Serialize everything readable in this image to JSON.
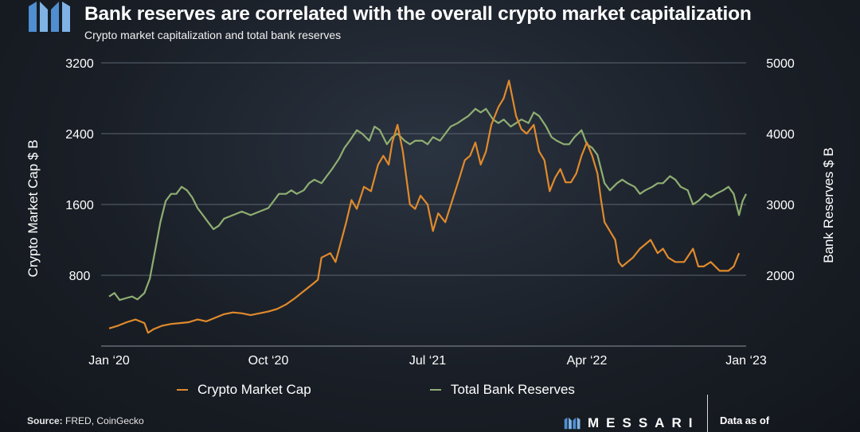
{
  "header": {
    "title": "Bank reserves are correlated with the overall crypto market capitalization",
    "subtitle": "Crypto market capitalization and total bank reserves"
  },
  "footer": {
    "source_label": "Source:",
    "source_value": "FRED, CoinGecko",
    "brand": "MESSARI",
    "data_as_of": "Data as of"
  },
  "colors": {
    "crypto": "#e08a2c",
    "reserves": "#8fae72",
    "accent": "#5b9bd5"
  },
  "chart_data": {
    "type": "line",
    "left_axis": {
      "label": "Crypto Market Cap $ B",
      "ticks": [
        800,
        1600,
        2400,
        3200
      ],
      "range": [
        0,
        3200
      ]
    },
    "right_axis": {
      "label": "Bank Reserves $ B",
      "ticks": [
        2000,
        3000,
        4000,
        5000
      ],
      "range": [
        1000,
        5000
      ]
    },
    "x_axis": {
      "ticks": [
        {
          "label": "Jan ‘20",
          "t": 0
        },
        {
          "label": "Oct ‘20",
          "t": 9
        },
        {
          "label": "Jul ‘21",
          "t": 18
        },
        {
          "label": "Apr ‘22",
          "t": 27
        },
        {
          "label": "Jan ‘23",
          "t": 36
        }
      ]
    },
    "legend": [
      "Crypto Market Cap",
      "Total Bank Reserves"
    ],
    "series": [
      {
        "name": "Crypto Market Cap",
        "axis": "left",
        "points": [
          [
            0,
            200
          ],
          [
            0.5,
            230
          ],
          [
            1,
            270
          ],
          [
            1.5,
            300
          ],
          [
            2,
            260
          ],
          [
            2.2,
            150
          ],
          [
            2.5,
            190
          ],
          [
            3,
            230
          ],
          [
            3.5,
            250
          ],
          [
            4,
            260
          ],
          [
            4.5,
            270
          ],
          [
            5,
            300
          ],
          [
            5.5,
            280
          ],
          [
            6,
            320
          ],
          [
            6.5,
            360
          ],
          [
            7,
            380
          ],
          [
            7.5,
            370
          ],
          [
            8,
            350
          ],
          [
            8.5,
            370
          ],
          [
            9,
            390
          ],
          [
            9.5,
            420
          ],
          [
            10,
            470
          ],
          [
            10.5,
            540
          ],
          [
            11,
            620
          ],
          [
            11.5,
            700
          ],
          [
            11.8,
            750
          ],
          [
            12,
            1000
          ],
          [
            12.5,
            1050
          ],
          [
            12.8,
            950
          ],
          [
            13,
            1100
          ],
          [
            13.4,
            1400
          ],
          [
            13.7,
            1650
          ],
          [
            14,
            1550
          ],
          [
            14.4,
            1800
          ],
          [
            14.8,
            1750
          ],
          [
            15.2,
            2050
          ],
          [
            15.5,
            2150
          ],
          [
            15.8,
            2050
          ],
          [
            16,
            2300
          ],
          [
            16.3,
            2500
          ],
          [
            16.6,
            2200
          ],
          [
            17,
            1600
          ],
          [
            17.3,
            1550
          ],
          [
            17.6,
            1700
          ],
          [
            18,
            1600
          ],
          [
            18.3,
            1300
          ],
          [
            18.6,
            1500
          ],
          [
            19,
            1400
          ],
          [
            19.4,
            1650
          ],
          [
            19.8,
            1900
          ],
          [
            20.1,
            2100
          ],
          [
            20.4,
            2150
          ],
          [
            20.7,
            2300
          ],
          [
            21,
            2050
          ],
          [
            21.3,
            2200
          ],
          [
            21.6,
            2500
          ],
          [
            22,
            2700
          ],
          [
            22.3,
            2800
          ],
          [
            22.6,
            3000
          ],
          [
            23,
            2600
          ],
          [
            23.3,
            2450
          ],
          [
            23.6,
            2400
          ],
          [
            24,
            2500
          ],
          [
            24.3,
            2200
          ],
          [
            24.6,
            2100
          ],
          [
            24.9,
            1750
          ],
          [
            25.2,
            1900
          ],
          [
            25.5,
            2000
          ],
          [
            25.8,
            1850
          ],
          [
            26.1,
            1850
          ],
          [
            26.4,
            1950
          ],
          [
            26.7,
            2150
          ],
          [
            27,
            2300
          ],
          [
            27.3,
            2150
          ],
          [
            27.6,
            1950
          ],
          [
            27.8,
            1650
          ],
          [
            28,
            1400
          ],
          [
            28.3,
            1300
          ],
          [
            28.6,
            1200
          ],
          [
            28.8,
            950
          ],
          [
            29,
            900
          ],
          [
            29.3,
            950
          ],
          [
            29.6,
            1000
          ],
          [
            30,
            1100
          ],
          [
            30.3,
            1150
          ],
          [
            30.6,
            1200
          ],
          [
            31,
            1050
          ],
          [
            31.3,
            1100
          ],
          [
            31.6,
            1000
          ],
          [
            32,
            950
          ],
          [
            32.5,
            950
          ],
          [
            33,
            1100
          ],
          [
            33.3,
            900
          ],
          [
            33.6,
            900
          ],
          [
            34,
            950
          ],
          [
            34.5,
            850
          ],
          [
            35,
            850
          ],
          [
            35.3,
            900
          ],
          [
            35.6,
            1050
          ]
        ]
      },
      {
        "name": "Total Bank Reserves",
        "axis": "right",
        "points": [
          [
            0,
            1700
          ],
          [
            0.3,
            1750
          ],
          [
            0.6,
            1650
          ],
          [
            1,
            1680
          ],
          [
            1.3,
            1700
          ],
          [
            1.6,
            1660
          ],
          [
            2,
            1750
          ],
          [
            2.3,
            1950
          ],
          [
            2.6,
            2350
          ],
          [
            2.9,
            2750
          ],
          [
            3.2,
            3050
          ],
          [
            3.5,
            3150
          ],
          [
            3.8,
            3150
          ],
          [
            4.1,
            3250
          ],
          [
            4.4,
            3200
          ],
          [
            4.7,
            3100
          ],
          [
            5,
            2950
          ],
          [
            5.3,
            2850
          ],
          [
            5.6,
            2750
          ],
          [
            5.9,
            2650
          ],
          [
            6.2,
            2700
          ],
          [
            6.5,
            2800
          ],
          [
            7,
            2850
          ],
          [
            7.5,
            2900
          ],
          [
            8,
            2850
          ],
          [
            8.5,
            2900
          ],
          [
            9,
            2950
          ],
          [
            9.3,
            3050
          ],
          [
            9.6,
            3150
          ],
          [
            10,
            3150
          ],
          [
            10.3,
            3200
          ],
          [
            10.6,
            3150
          ],
          [
            11,
            3200
          ],
          [
            11.3,
            3300
          ],
          [
            11.6,
            3350
          ],
          [
            12,
            3300
          ],
          [
            12.3,
            3400
          ],
          [
            12.6,
            3500
          ],
          [
            13,
            3650
          ],
          [
            13.3,
            3800
          ],
          [
            13.6,
            3900
          ],
          [
            14,
            4050
          ],
          [
            14.3,
            4000
          ],
          [
            14.7,
            3900
          ],
          [
            15,
            4100
          ],
          [
            15.3,
            4050
          ],
          [
            15.7,
            3850
          ],
          [
            16,
            3950
          ],
          [
            16.3,
            4000
          ],
          [
            16.7,
            3900
          ],
          [
            17,
            3850
          ],
          [
            17.3,
            3900
          ],
          [
            17.7,
            3900
          ],
          [
            18,
            3850
          ],
          [
            18.3,
            3950
          ],
          [
            18.7,
            3900
          ],
          [
            19,
            4000
          ],
          [
            19.3,
            4100
          ],
          [
            19.7,
            4150
          ],
          [
            20,
            4200
          ],
          [
            20.3,
            4250
          ],
          [
            20.7,
            4350
          ],
          [
            21,
            4300
          ],
          [
            21.3,
            4350
          ],
          [
            21.7,
            4200
          ],
          [
            22,
            4150
          ],
          [
            22.3,
            4200
          ],
          [
            22.7,
            4100
          ],
          [
            23,
            4150
          ],
          [
            23.3,
            4200
          ],
          [
            23.7,
            4150
          ],
          [
            24,
            4300
          ],
          [
            24.3,
            4250
          ],
          [
            24.7,
            4100
          ],
          [
            25,
            3950
          ],
          [
            25.3,
            3900
          ],
          [
            25.7,
            3850
          ],
          [
            26,
            3850
          ],
          [
            26.3,
            3950
          ],
          [
            26.7,
            4050
          ],
          [
            27,
            3850
          ],
          [
            27.3,
            3800
          ],
          [
            27.6,
            3700
          ],
          [
            28,
            3300
          ],
          [
            28.3,
            3200
          ],
          [
            28.7,
            3300
          ],
          [
            29,
            3350
          ],
          [
            29.3,
            3300
          ],
          [
            29.7,
            3250
          ],
          [
            30,
            3150
          ],
          [
            30.3,
            3200
          ],
          [
            30.7,
            3250
          ],
          [
            31,
            3300
          ],
          [
            31.3,
            3300
          ],
          [
            31.7,
            3400
          ],
          [
            32,
            3350
          ],
          [
            32.3,
            3250
          ],
          [
            32.7,
            3200
          ],
          [
            33,
            3000
          ],
          [
            33.3,
            3050
          ],
          [
            33.7,
            3150
          ],
          [
            34,
            3100
          ],
          [
            34.3,
            3150
          ],
          [
            34.7,
            3200
          ],
          [
            35,
            3250
          ],
          [
            35.3,
            3150
          ],
          [
            35.6,
            2850
          ],
          [
            35.8,
            3050
          ],
          [
            36,
            3150
          ]
        ]
      }
    ]
  }
}
